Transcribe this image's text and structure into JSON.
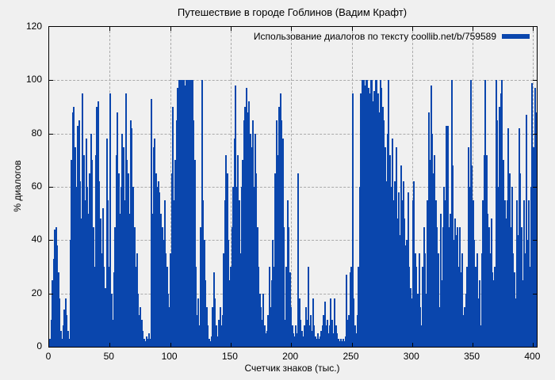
{
  "title": "Путешествие в городе Гоблинов (Вадим Крафт)",
  "colors": {
    "background": "#f0f0f0",
    "bar": "#0a46ad",
    "grid": "#aaaaaa",
    "frame": "#000000"
  },
  "chart_data": {
    "type": "bar",
    "style": "impulses",
    "title": "Путешествие в городе Гоблинов (Вадим Крафт)",
    "xlabel": "Счетчик знаков (тыс.)",
    "ylabel": "% диалогов",
    "legend": {
      "label": "Использование диалогов по тексту coollib.net/b/759589",
      "position": "top-right",
      "swatch_color": "#0a46ad"
    },
    "grid": true,
    "xlim": [
      0,
      403
    ],
    "ylim": [
      0,
      120
    ],
    "xticks": [
      0,
      50,
      100,
      150,
      200,
      250,
      300,
      350,
      400
    ],
    "yticks": [
      0,
      20,
      40,
      60,
      80,
      100,
      120
    ],
    "bar_color": "#0a46ad",
    "x_start": 0,
    "x_step": 1,
    "values": [
      3,
      10,
      25,
      33,
      44,
      45,
      38,
      28,
      18,
      6,
      3,
      8,
      14,
      18,
      12,
      6,
      3,
      40,
      70,
      88,
      90,
      75,
      60,
      83,
      85,
      62,
      48,
      95,
      72,
      55,
      78,
      60,
      50,
      65,
      80,
      70,
      45,
      30,
      72,
      90,
      92,
      62,
      48,
      35,
      52,
      30,
      22,
      78,
      55,
      30,
      95,
      20,
      10,
      28,
      45,
      72,
      88,
      65,
      50,
      60,
      80,
      75,
      55,
      95,
      70,
      65,
      50,
      85,
      82,
      60,
      45,
      30,
      35,
      20,
      12,
      15,
      10,
      6,
      3,
      2,
      4,
      3,
      5,
      3,
      93,
      50,
      75,
      78,
      65,
      60,
      62,
      58,
      50,
      45,
      40,
      55,
      35,
      30,
      20,
      15,
      35,
      65,
      90,
      55,
      70,
      85,
      97,
      100,
      100,
      100,
      100,
      100,
      98,
      100,
      100,
      100,
      100,
      100,
      100,
      85,
      70,
      30,
      12,
      18,
      8,
      45,
      100,
      55,
      40,
      25,
      15,
      8,
      3,
      2,
      4,
      15,
      28,
      18,
      8,
      4,
      10,
      15,
      8,
      12,
      35,
      55,
      72,
      65,
      40,
      25,
      30,
      45,
      60,
      78,
      98,
      60,
      72,
      55,
      35,
      60,
      70,
      85,
      90,
      97,
      88,
      92,
      80,
      75,
      85,
      60,
      80,
      65,
      45,
      30,
      20,
      15,
      10,
      20,
      8,
      5,
      6,
      12,
      30,
      15,
      25,
      40,
      30,
      65,
      85,
      72,
      90,
      95,
      85,
      78,
      45,
      10,
      30,
      55,
      45,
      28,
      15,
      8,
      5,
      4,
      8,
      5,
      65,
      18,
      10,
      6,
      4,
      8,
      15,
      10,
      30,
      8,
      12,
      6,
      18,
      8,
      4,
      3,
      5,
      3,
      4,
      6,
      8,
      12,
      17,
      8,
      10,
      5,
      8,
      18,
      10,
      5,
      18,
      8,
      5,
      3,
      2,
      3,
      2,
      3,
      2,
      4,
      27,
      10,
      12,
      28,
      30,
      95,
      18,
      8,
      5,
      12,
      30,
      60,
      95,
      100,
      100,
      98,
      100,
      100,
      97,
      95,
      100,
      100,
      92,
      96,
      100,
      100,
      95,
      88,
      100,
      97,
      90,
      85,
      75,
      62,
      80,
      100,
      72,
      60,
      78,
      55,
      62,
      75,
      48,
      58,
      42,
      68,
      55,
      62,
      48,
      38,
      40,
      58,
      30,
      22,
      18,
      55,
      62,
      35,
      30,
      20,
      35,
      15,
      8,
      30,
      45,
      35,
      20,
      55,
      88,
      70,
      98,
      80,
      65,
      72,
      55,
      45,
      35,
      15,
      50,
      25,
      45,
      60,
      55,
      83,
      83,
      45,
      50,
      100,
      68,
      40,
      48,
      42,
      45,
      30,
      45,
      28,
      35,
      12,
      15,
      20,
      30,
      75,
      60,
      100,
      68,
      55,
      40,
      30,
      35,
      18,
      25,
      8,
      35,
      55,
      72,
      100,
      72,
      50,
      45,
      35,
      48,
      28,
      25,
      30,
      100,
      85,
      60,
      90,
      95,
      100,
      70,
      55,
      48,
      55,
      82,
      65,
      45,
      60,
      35,
      28,
      18,
      55,
      42,
      82,
      65,
      45,
      25,
      55,
      35,
      87,
      40,
      55,
      30,
      60,
      99,
      75,
      97,
      88
    ]
  }
}
